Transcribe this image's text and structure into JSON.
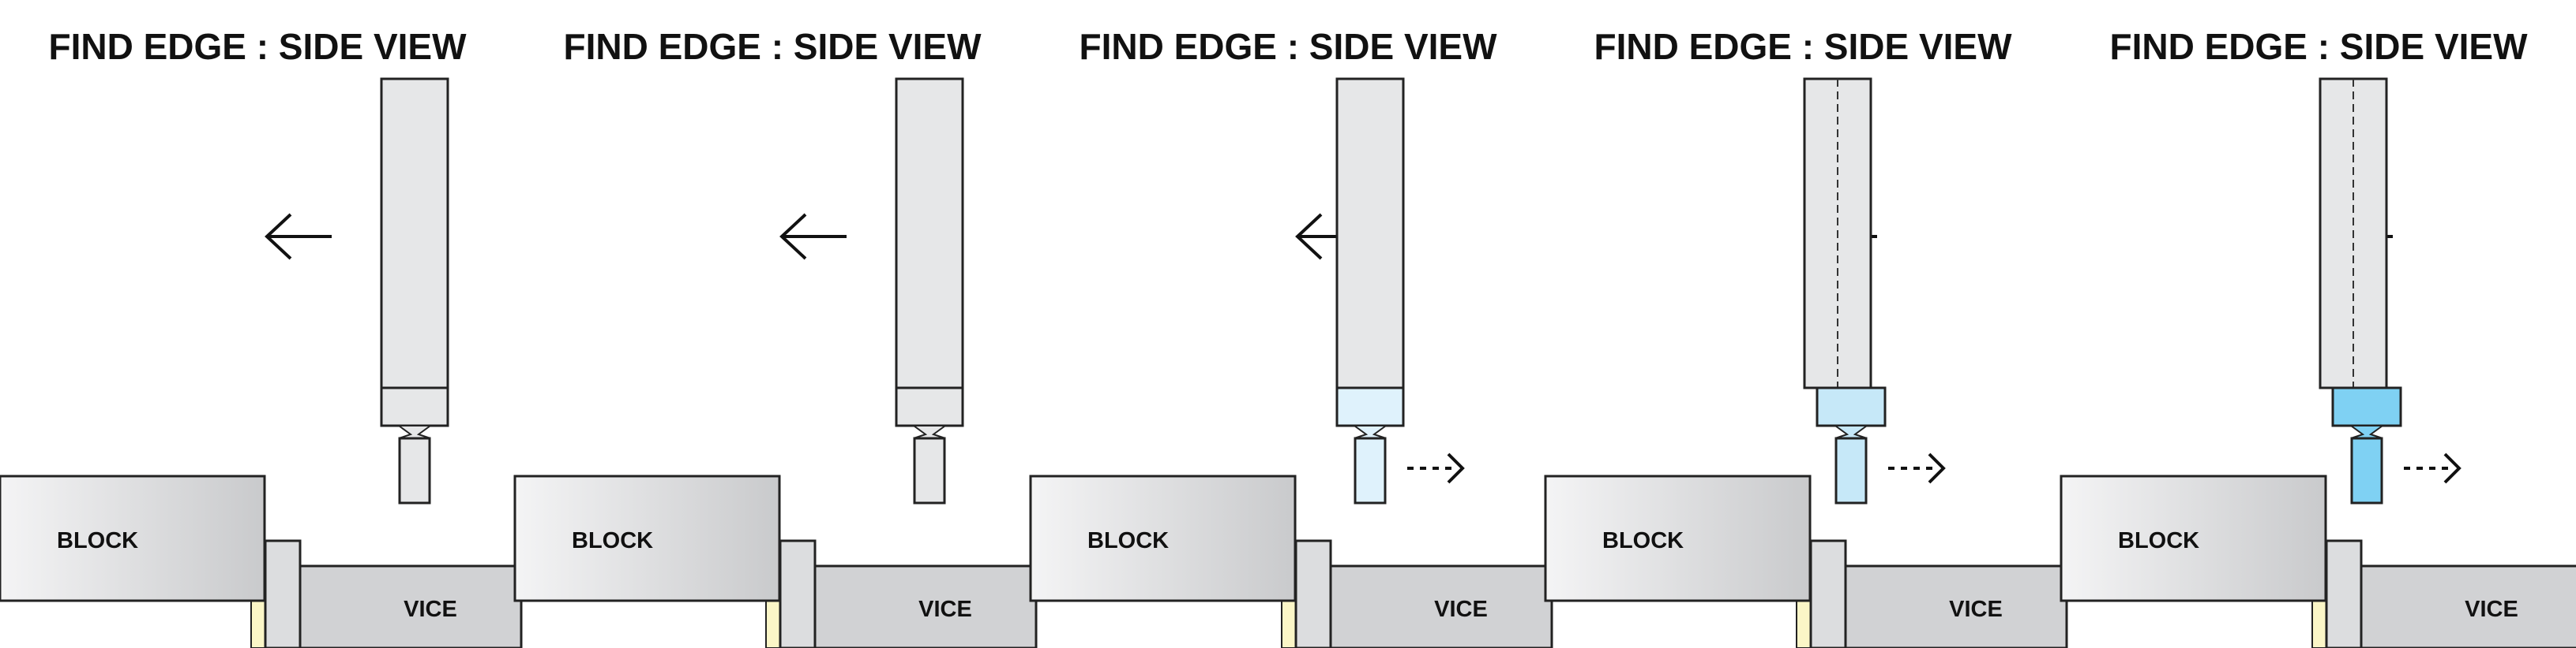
{
  "panels": [
    {
      "title": "FIND EDGE : SIDE VIEW",
      "block_label": "BLOCK",
      "vice_label": "VICE",
      "stage": "approach",
      "tip_color": "#e6e7e8",
      "collar_color": "#e6e7e8",
      "tip_offset": "aligned",
      "bounce_arrow": false,
      "spindle_axis": false
    },
    {
      "title": "FIND EDGE : SIDE VIEW",
      "block_label": "BLOCK",
      "vice_label": "VICE",
      "stage": "approach",
      "tip_color": "#e6e7e8",
      "collar_color": "#e6e7e8",
      "tip_offset": "aligned",
      "bounce_arrow": false,
      "spindle_axis": false
    },
    {
      "title": "FIND EDGE : SIDE VIEW",
      "block_label": "BLOCK",
      "vice_label": "VICE",
      "stage": "contact",
      "tip_color": "#dff2fc",
      "collar_color": "#dff2fc",
      "tip_offset": "aligned",
      "bounce_arrow": true,
      "spindle_axis": false
    },
    {
      "title": "FIND EDGE : SIDE VIEW",
      "block_label": "BLOCK",
      "vice_label": "VICE",
      "stage": "offset",
      "tip_color": "#c6e8f8",
      "collar_color": "#c6e8f8",
      "tip_offset": "offset",
      "bounce_arrow": true,
      "spindle_axis": true
    },
    {
      "title": "FIND EDGE : SIDE VIEW",
      "block_label": "BLOCK",
      "vice_label": "VICE",
      "stage": "kick",
      "tip_color": "#7fd1f3",
      "collar_color": "#7fd1f3",
      "tip_offset": "offset",
      "bounce_arrow": true,
      "spindle_axis": true
    }
  ],
  "colors": {
    "outline": "#222222",
    "shank": "#e6e7e8",
    "block_light": "#f4f4f5",
    "block_dark": "#c9cacc",
    "vice": "#d1d2d4",
    "jaw": "#dcdddf",
    "parallel": "#fbf6c7"
  }
}
